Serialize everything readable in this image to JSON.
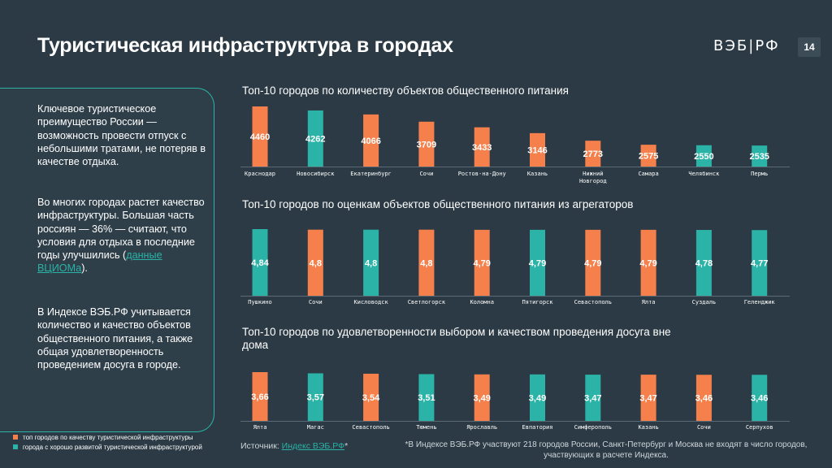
{
  "title": "Туристическая инфраструктура в городах",
  "logo": "ВЭБ|РФ",
  "page_number": "14",
  "colors": {
    "orange": "#f5804b",
    "teal": "#2ab3a6",
    "background": "#2b3a44"
  },
  "panel": {
    "p1": "Ключевое туристическое преимущество России — возможность провести отпуск с небольшими тратами, не потеряв в качестве отдыха.",
    "p2_text": "Во многих городах растет качество инфраструктуры. Большая часть россиян — 36% — считают, что условия для отдыха в последние годы улучшились (",
    "p2_link": "данные ВЦИОМа",
    "p2_end": ").",
    "p3": "В Индексе ВЭБ.РФ учитывается количество и качество объектов общественного питания, а также общая удовлетворенность проведением досуга в городе."
  },
  "legend": [
    {
      "label": "топ городов по качеству туристической инфраструктуры",
      "color": "#f5804b"
    },
    {
      "label": "города с хорошо развитой туристической инфраструктурой",
      "color": "#2ab3a6"
    }
  ],
  "source_label": "Источник: ",
  "source_link": "Индекс ВЭБ.РФ",
  "source_suffix": "*",
  "footnote": "*В Индексе ВЭБ.РФ участвуют 218 городов России, Санкт-Петербург и Москва не входят в  число городов, участвующих в  расчете Индекса.",
  "chart_data": [
    {
      "type": "bar",
      "title": "Топ-10 городов по количеству объектов общественного питания",
      "categories": [
        "Краснодар",
        "Новосибирск",
        "Екатеринбург",
        "Сочи",
        "Ростов-на-Дону",
        "Казань",
        "Нижний Новгород",
        "Самара",
        "Челябинск",
        "Пермь"
      ],
      "values": [
        4460,
        4262,
        4066,
        3709,
        3433,
        3146,
        2773,
        2575,
        2550,
        2535
      ],
      "value_labels": [
        "4460",
        "4262",
        "4066",
        "3709",
        "3433",
        "3146",
        "2773",
        "2575",
        "2550",
        "2535"
      ],
      "colors": [
        "orange",
        "teal",
        "orange",
        "orange",
        "orange",
        "orange",
        "orange",
        "orange",
        "teal",
        "teal"
      ],
      "ylim": [
        1500,
        4500
      ]
    },
    {
      "type": "bar",
      "title": "Топ-10 городов по оценкам объектов общественного питания из агрегаторов",
      "categories": [
        "Пушкино",
        "Сочи",
        "Кисловодск",
        "Светлогорск",
        "Коломна",
        "Пятигорск",
        "Севастополь",
        "Ялта",
        "Суздаль",
        "Геленджик"
      ],
      "values": [
        4.84,
        4.8,
        4.8,
        4.8,
        4.79,
        4.79,
        4.79,
        4.79,
        4.78,
        4.77
      ],
      "value_labels": [
        "4,84",
        "4,8",
        "4,8",
        "4,8",
        "4,79",
        "4,79",
        "4,79",
        "4,79",
        "4,78",
        "4,77"
      ],
      "colors": [
        "teal",
        "orange",
        "teal",
        "orange",
        "orange",
        "teal",
        "orange",
        "orange",
        "teal",
        "teal"
      ],
      "ylim": [
        0,
        4.84
      ]
    },
    {
      "type": "bar",
      "title": "Топ-10 городов по удовлетворенности выбором и качеством проведения досуга вне дома",
      "categories": [
        "Ялта",
        "Магас",
        "Севастополь",
        "Тюмень",
        "Ярославль",
        "Евпатория",
        "Симферополь",
        "Казань",
        "Сочи",
        "Серпухов"
      ],
      "values": [
        3.66,
        3.57,
        3.54,
        3.51,
        3.49,
        3.49,
        3.47,
        3.47,
        3.46,
        3.46
      ],
      "value_labels": [
        "3,66",
        "3,57",
        "3,54",
        "3,51",
        "3,49",
        "3,49",
        "3,47",
        "3,47",
        "3,46",
        "3,46"
      ],
      "colors": [
        "orange",
        "teal",
        "orange",
        "teal",
        "orange",
        "teal",
        "teal",
        "orange",
        "orange",
        "teal"
      ],
      "ylim": [
        0,
        3.66
      ]
    }
  ]
}
